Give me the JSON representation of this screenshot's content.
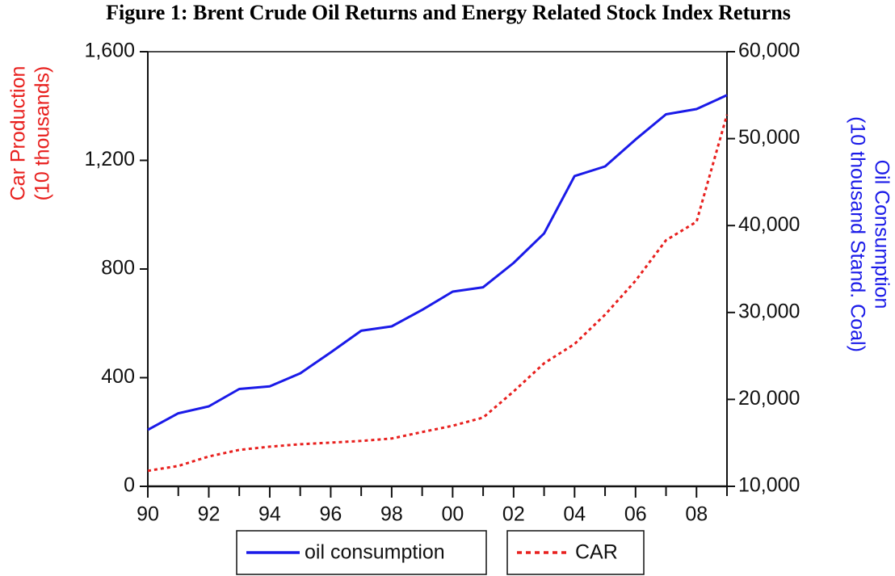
{
  "chart_data": {
    "type": "line",
    "title": "Figure 1: Brent Crude Oil Returns and Energy Related Stock Index Returns",
    "ylabel": [
      "Car Production",
      "(10 thousands)"
    ],
    "y2label": [
      "Oil Consumption",
      "(10 thousand Stand. Coal)"
    ],
    "categories": [
      "90",
      null,
      "92",
      null,
      "94",
      null,
      "96",
      null,
      "98",
      null,
      "00",
      null,
      "02",
      null,
      "04",
      null,
      "06",
      null,
      "08",
      null
    ],
    "series": [
      {
        "name": "oil consumption",
        "color": "#1a1ae8",
        "axis": "y2",
        "dash": false,
        "values": [
          16500,
          18400,
          19200,
          21200,
          21500,
          23000,
          25400,
          27900,
          28400,
          30300,
          32400,
          32900,
          35700,
          39100,
          45700,
          46800,
          49900,
          52800,
          53400,
          55000
        ]
      },
      {
        "name": "CAR",
        "color": "#e8201e",
        "axis": "y",
        "dash": true,
        "values": [
          57,
          75,
          110,
          134,
          146,
          155,
          161,
          167,
          176,
          200,
          223,
          253,
          349,
          453,
          524,
          632,
          757,
          906,
          974,
          1368
        ]
      }
    ],
    "ylim": [
      0,
      1600
    ],
    "yticks": [
      0,
      400,
      800,
      {
        "value": 1200,
        "label": "1,200"
      },
      {
        "value": 1600,
        "label": "1,600"
      }
    ],
    "y2lim": [
      10000,
      60000
    ],
    "y2ticks": [
      {
        "value": 10000,
        "label": "10,000"
      },
      {
        "value": 20000,
        "label": "20,000"
      },
      {
        "value": 30000,
        "label": "30,000"
      },
      {
        "value": 40000,
        "label": "40,000"
      },
      {
        "value": 50000,
        "label": "50,000"
      },
      {
        "value": 60000,
        "label": "60,000"
      }
    ],
    "ycolor": "#e8201e",
    "y2color": "#1a1ae8"
  }
}
